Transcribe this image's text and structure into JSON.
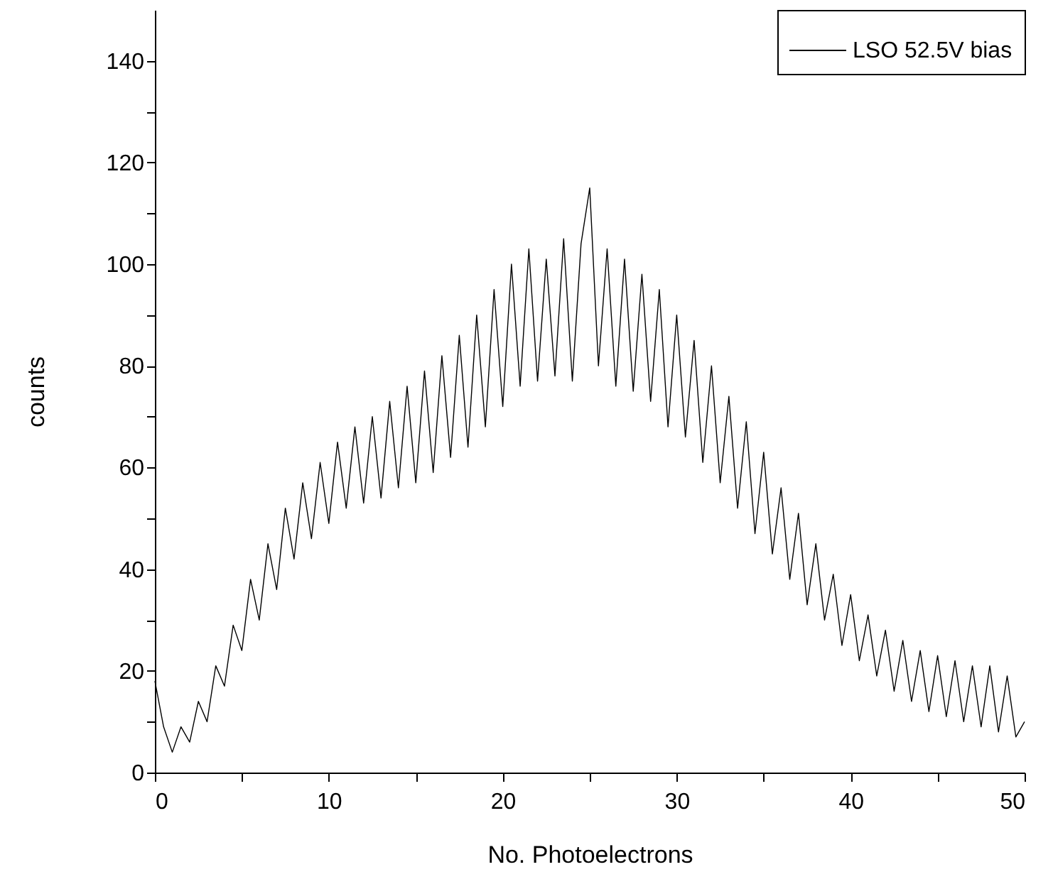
{
  "chart_data": {
    "type": "line",
    "xlabel": "No. Photoelectrons",
    "ylabel": "counts",
    "xlim": [
      0,
      50
    ],
    "ylim": [
      0,
      150
    ],
    "xticks": [
      0,
      {
        "value": 5,
        "label": null
      },
      10,
      {
        "value": 15,
        "label": null
      },
      20,
      {
        "value": 25,
        "label": null
      },
      30,
      {
        "value": 35,
        "label": null
      },
      40,
      {
        "value": 45,
        "label": null
      },
      50
    ],
    "yticks": [
      0,
      {
        "value": 10,
        "label": null
      },
      20,
      {
        "value": 30,
        "label": null
      },
      40,
      {
        "value": 50,
        "label": null
      },
      60,
      {
        "value": 70,
        "label": null
      },
      80,
      {
        "value": 90,
        "label": null
      },
      100,
      {
        "value": 110,
        "label": null
      },
      120,
      {
        "value": 130,
        "label": null
      },
      140
    ],
    "grid": false,
    "legend": "top right",
    "marker": "none",
    "line_style": "solid",
    "x": [
      0,
      0.5,
      1,
      1.5,
      2,
      2.5,
      3,
      3.5,
      4,
      4.5,
      5,
      5.5,
      6,
      6.5,
      7,
      7.5,
      8,
      8.5,
      9,
      9.5,
      10,
      10.5,
      11,
      11.5,
      12,
      12.5,
      13,
      13.5,
      14,
      14.5,
      15,
      15.5,
      16,
      16.5,
      17,
      17.5,
      18,
      18.5,
      19,
      19.5,
      20,
      20.5,
      21,
      21.5,
      22,
      22.5,
      23,
      23.5,
      24,
      24.5,
      25,
      25.5,
      26,
      26.5,
      27,
      27.5,
      28,
      28.5,
      29,
      29.5,
      30,
      30.5,
      31,
      31.5,
      32,
      32.5,
      33,
      33.5,
      34,
      34.5,
      35,
      35.5,
      36,
      36.5,
      37,
      37.5,
      38,
      38.5,
      39,
      39.5,
      40,
      40.5,
      41,
      41.5,
      42,
      42.5,
      43,
      43.5,
      44,
      44.5,
      45,
      45.5,
      46,
      46.5,
      47,
      47.5,
      48,
      48.5,
      49,
      49.5,
      50
    ],
    "series": [
      {
        "name": "LSO 52.5V bias",
        "color": "#000000",
        "values": [
          18,
          9,
          4,
          9,
          6,
          14,
          10,
          21,
          17,
          29,
          24,
          38,
          30,
          45,
          36,
          52,
          42,
          57,
          46,
          61,
          49,
          65,
          52,
          68,
          53,
          70,
          54,
          73,
          56,
          76,
          57,
          79,
          59,
          82,
          62,
          86,
          64,
          90,
          68,
          95,
          72,
          100,
          76,
          103,
          77,
          101,
          78,
          105,
          77,
          104,
          115,
          80,
          103,
          76,
          101,
          75,
          98,
          73,
          95,
          68,
          90,
          66,
          85,
          61,
          80,
          57,
          74,
          52,
          69,
          47,
          63,
          43,
          56,
          38,
          51,
          33,
          45,
          30,
          39,
          25,
          35,
          22,
          31,
          19,
          28,
          16,
          26,
          14,
          24,
          12,
          23,
          11,
          22,
          10,
          21,
          9,
          21,
          8,
          19,
          7,
          10
        ]
      }
    ]
  }
}
